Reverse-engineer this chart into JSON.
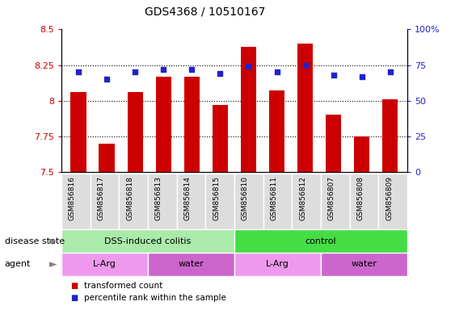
{
  "title": "GDS4368 / 10510167",
  "samples": [
    "GSM856816",
    "GSM856817",
    "GSM856818",
    "GSM856813",
    "GSM856814",
    "GSM856815",
    "GSM856810",
    "GSM856811",
    "GSM856812",
    "GSM856807",
    "GSM856808",
    "GSM856809"
  ],
  "red_values": [
    8.06,
    7.7,
    8.06,
    8.17,
    8.17,
    7.97,
    8.38,
    8.07,
    8.4,
    7.9,
    7.75,
    8.01
  ],
  "blue_values_pct": [
    70,
    65,
    70,
    72,
    72,
    69,
    74,
    70,
    75,
    68,
    67,
    70
  ],
  "ylim_left": [
    7.5,
    8.5
  ],
  "ylim_right": [
    0,
    100
  ],
  "yticks_left": [
    7.5,
    7.75,
    8.0,
    8.25,
    8.5
  ],
  "yticks_right": [
    0,
    25,
    50,
    75,
    100
  ],
  "ytick_labels_left": [
    "7.5",
    "7.75",
    "8",
    "8.25",
    "8.5"
  ],
  "ytick_labels_right": [
    "0",
    "25",
    "50",
    "75",
    "100%"
  ],
  "grid_lines": [
    7.75,
    8.0,
    8.25
  ],
  "disease_state_groups": [
    {
      "label": "DSS-induced colitis",
      "start": 0,
      "end": 6,
      "color": "#AAEAAA"
    },
    {
      "label": "control",
      "start": 6,
      "end": 12,
      "color": "#44DD44"
    }
  ],
  "agent_groups": [
    {
      "label": "L-Arg",
      "start": 0,
      "end": 3,
      "color": "#EE99EE"
    },
    {
      "label": "water",
      "start": 3,
      "end": 6,
      "color": "#CC66CC"
    },
    {
      "label": "L-Arg",
      "start": 6,
      "end": 9,
      "color": "#EE99EE"
    },
    {
      "label": "water",
      "start": 9,
      "end": 12,
      "color": "#CC66CC"
    }
  ],
  "bar_color": "#CC0000",
  "dot_color": "#2222CC",
  "bar_width": 0.55,
  "legend_items": [
    {
      "label": "transformed count",
      "color": "#CC0000"
    },
    {
      "label": "percentile rank within the sample",
      "color": "#2222CC"
    }
  ],
  "tick_color_left": "#CC0000",
  "tick_color_right": "#2222CC",
  "label_cell_color": "#DDDDDD",
  "ds_light_green": "#AAEAAA",
  "ds_dark_green": "#44DD44",
  "agent_light_violet": "#EE99EE",
  "agent_dark_violet": "#CC66CC"
}
